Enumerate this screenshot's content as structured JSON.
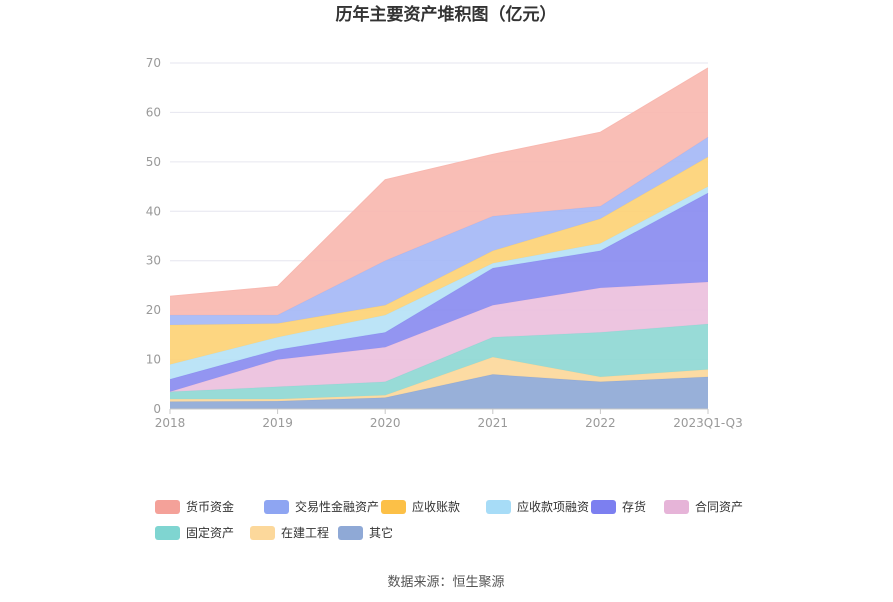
{
  "chart_data": {
    "type": "area",
    "stacked": true,
    "title": "历年主要资产堆积图（亿元）",
    "categories": [
      "2018",
      "2019",
      "2020",
      "2021",
      "2022",
      "2023Q1-Q3"
    ],
    "y_ticks": [
      "0",
      "10",
      "20",
      "30",
      "40",
      "50",
      "60",
      "70"
    ],
    "ylim": [
      0,
      70
    ],
    "grid": true,
    "legend_position": "bottom",
    "series": [
      {
        "name": "其它",
        "color": "#8fa9d6",
        "values": [
          1.5,
          1.6,
          2.3,
          7.0,
          5.5,
          6.5
        ]
      },
      {
        "name": "在建工程",
        "color": "#fcd89b",
        "values": [
          0.5,
          0.4,
          0.5,
          3.5,
          1.0,
          1.5
        ]
      },
      {
        "name": "固定资产",
        "color": "#8fd8d4",
        "values": [
          1.5,
          2.5,
          2.7,
          4.0,
          9.0,
          9.2
        ]
      },
      {
        "name": "合同资产",
        "color": "#ebc0dd",
        "values": [
          0.0,
          5.5,
          7.0,
          6.5,
          9.0,
          8.5
        ]
      },
      {
        "name": "存货",
        "color": "#8a8cf0",
        "values": [
          2.5,
          2.0,
          3.0,
          7.5,
          7.5,
          18.0
        ]
      },
      {
        "name": "应收款项融资",
        "color": "#b6e2f6",
        "values": [
          3.0,
          2.5,
          3.5,
          1.0,
          1.5,
          1.3
        ]
      },
      {
        "name": "应收账款",
        "color": "#fdd276",
        "values": [
          8.0,
          2.8,
          2.0,
          2.5,
          5.0,
          6.0
        ]
      },
      {
        "name": "交易性金融资产",
        "color": "#a5b8f6",
        "values": [
          2.0,
          1.7,
          9.0,
          7.0,
          2.5,
          4.0
        ]
      },
      {
        "name": "货币资金",
        "color": "#f8b8b0",
        "values": [
          3.8,
          5.8,
          16.4,
          12.5,
          15.0,
          14.0
        ]
      }
    ],
    "legend": [
      {
        "name": "货币资金",
        "color": "#f4a199"
      },
      {
        "name": "交易性金融资产",
        "color": "#8ea5f2"
      },
      {
        "name": "应收账款",
        "color": "#fcc047"
      },
      {
        "name": "应收款项融资",
        "color": "#a7dcf7"
      },
      {
        "name": "存货",
        "color": "#7c7ff0"
      },
      {
        "name": "合同资产",
        "color": "#e6b4d8"
      },
      {
        "name": "固定资产",
        "color": "#7fd5d1"
      },
      {
        "name": "在建工程",
        "color": "#fcd89b"
      },
      {
        "name": "其它",
        "color": "#8fa9d6"
      }
    ]
  },
  "source_text": "数据来源：恒生聚源"
}
